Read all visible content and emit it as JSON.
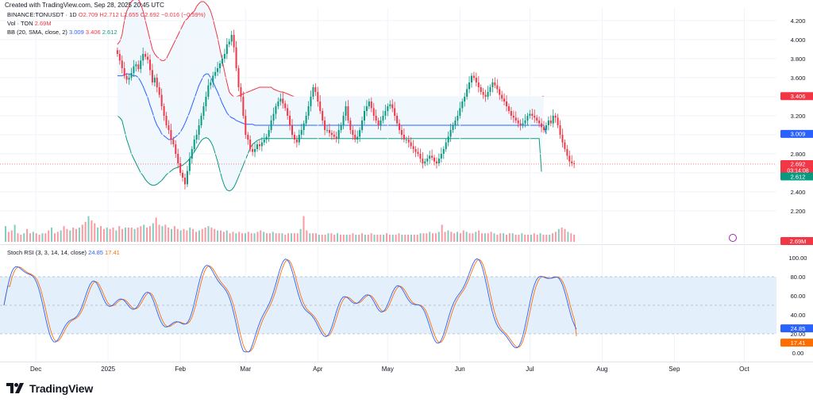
{
  "header": {
    "created": "Created with TradingView.com, Sep 28, 2025 20:45 UTC"
  },
  "legend": {
    "symbol": "BINANCE:TONUSDT · 1D",
    "ohlc": "O2.709 H2.712 L2.655 C2.692 −0.016 (−0.59%)",
    "vol_label": "Vol · TON",
    "vol_value": "2.69M",
    "bb_label": "BB (20, SMA, close, 2)",
    "bb_basis": "3.009",
    "bb_upper": "3.406",
    "bb_lower": "2.612",
    "stoch_label": "Stoch RSI (3, 3, 14, 14, close)",
    "stoch_k": "24.85",
    "stoch_d": "17.41"
  },
  "badges": {
    "upper": "3.406",
    "price": "2.692",
    "countdown": "03:14:08",
    "basis": "3.009",
    "lower": "2.612",
    "volume": "2.69M",
    "stoch_k": "24.85",
    "stoch_d": "17.41"
  },
  "brand": {
    "name": "TradingView"
  },
  "colors": {
    "up": "#089981",
    "down": "#f23645",
    "bb_upper": "#f23645",
    "bb_basis": "#2962ff",
    "bb_lower": "#089981",
    "bb_fill": "#e3f2fd",
    "stoch_k": "#2962ff",
    "stoch_d": "#ff6d00",
    "stoch_band": "#e3f0fc"
  },
  "chart_data": [
    {
      "type": "candlestick",
      "title": "BINANCE:TONUSDT · 1D",
      "y_ticks": [
        2.2,
        2.4,
        2.6,
        2.8,
        3.0,
        3.2,
        3.4,
        3.6,
        3.8,
        4.0,
        4.2
      ],
      "y_tick_labels": [
        "2.200",
        "2.400",
        "2.600",
        "2.800",
        "3.000",
        "3.200",
        "3.400",
        "3.600",
        "3.800",
        "4.000",
        "4.200"
      ],
      "ylim": [
        2.1,
        4.28
      ],
      "x_tick_labels": [
        "Dec",
        "2025",
        "Feb",
        "Mar",
        "Apr",
        "May",
        "Jun",
        "Jul",
        "Aug",
        "Sep",
        "Oct"
      ],
      "x_tick_days": [
        13,
        44,
        75,
        103,
        134,
        164,
        195,
        225,
        256,
        287,
        317
      ],
      "last_close": 2.692,
      "close": [
        3.85,
        3.78,
        3.7,
        3.62,
        3.58,
        3.6,
        3.65,
        3.72,
        3.74,
        3.69,
        3.78,
        3.85,
        3.82,
        3.79,
        3.68,
        3.55,
        3.6,
        3.5,
        3.42,
        3.3,
        3.2,
        3.1,
        3.05,
        2.95,
        2.9,
        2.8,
        2.7,
        2.6,
        2.55,
        2.48,
        2.62,
        2.75,
        2.85,
        2.95,
        3.0,
        3.1,
        3.2,
        3.3,
        3.4,
        3.52,
        3.55,
        3.62,
        3.66,
        3.7,
        3.75,
        3.8,
        3.85,
        3.95,
        3.98,
        4.05,
        3.92,
        3.7,
        3.5,
        3.4,
        3.2,
        3.0,
        2.95,
        2.85,
        2.82,
        2.85,
        2.9,
        2.88,
        2.92,
        2.95,
        2.98,
        3.05,
        3.15,
        3.22,
        3.3,
        3.35,
        3.38,
        3.33,
        3.28,
        3.2,
        3.1,
        3.0,
        2.95,
        2.92,
        3.0,
        3.05,
        3.12,
        3.2,
        3.3,
        3.4,
        3.5,
        3.45,
        3.35,
        3.25,
        3.15,
        3.05,
        3.05,
        3.02,
        3.0,
        2.98,
        2.96,
        3.05,
        3.1,
        3.2,
        3.3,
        3.15,
        3.05,
        3.0,
        2.95,
        2.98,
        3.05,
        3.15,
        3.25,
        3.3,
        3.35,
        3.28,
        3.2,
        3.15,
        3.1,
        3.15,
        3.2,
        3.25,
        3.3,
        3.32,
        3.28,
        3.2,
        3.12,
        3.05,
        3.0,
        2.95,
        2.95,
        2.92,
        2.88,
        2.85,
        2.82,
        2.8,
        2.75,
        2.7,
        2.72,
        2.75,
        2.78,
        2.76,
        2.72,
        2.7,
        2.75,
        2.8,
        2.85,
        2.92,
        2.98,
        3.05,
        3.1,
        3.15,
        3.2,
        3.28,
        3.35,
        3.4,
        3.48,
        3.55,
        3.62,
        3.6,
        3.55,
        3.5,
        3.45,
        3.42,
        3.4,
        3.45,
        3.5,
        3.55,
        3.52,
        3.48,
        3.42,
        3.38,
        3.35,
        3.3,
        3.25,
        3.2,
        3.18,
        3.15,
        3.12,
        3.1,
        3.12,
        3.15,
        3.2,
        3.22,
        3.2,
        3.18,
        3.15,
        3.12,
        3.08,
        3.05,
        3.1,
        3.15,
        3.12,
        3.2,
        3.18,
        3.1,
        3.0,
        2.92,
        2.85,
        2.78,
        2.72,
        2.7,
        2.692
      ],
      "bb_upper": [
        3.95,
        3.98,
        4.05,
        4.2,
        4.3,
        4.35,
        4.4,
        4.42,
        4.45,
        4.42,
        4.38,
        4.3,
        4.2,
        4.1,
        4.0,
        3.9,
        3.85,
        3.82,
        3.8,
        3.78,
        3.78,
        3.8,
        3.85,
        3.9,
        3.95,
        4.0,
        4.05,
        4.1,
        4.15,
        4.2,
        4.22,
        4.25,
        4.28,
        4.3,
        4.35,
        4.38,
        4.4,
        4.4,
        4.38,
        4.35,
        4.3,
        4.22,
        4.12,
        4.02,
        3.9,
        3.78,
        3.66,
        3.55,
        3.45,
        3.42,
        3.4,
        3.4,
        3.41,
        3.42,
        3.43,
        3.44,
        3.45,
        3.46,
        3.47,
        3.48,
        3.49,
        3.5,
        3.5,
        3.5,
        3.5,
        3.5,
        3.5,
        3.48,
        3.47,
        3.46,
        3.45,
        3.45,
        3.44,
        3.43,
        3.42,
        3.41,
        3.4,
        3.4,
        3.4,
        3.4,
        3.4,
        3.4,
        3.4,
        3.4,
        3.4,
        3.4,
        3.4,
        3.4,
        3.4,
        3.4,
        3.4,
        3.4,
        3.4,
        3.4,
        3.4,
        3.4,
        3.4,
        3.4,
        3.4,
        3.4,
        3.4,
        3.4,
        3.4,
        3.4,
        3.4,
        3.4,
        3.4,
        3.4,
        3.4,
        3.4,
        3.4,
        3.4,
        3.4,
        3.4,
        3.4,
        3.4,
        3.4,
        3.4,
        3.4,
        3.4,
        3.4,
        3.4,
        3.4,
        3.4,
        3.4,
        3.4,
        3.4,
        3.4,
        3.4,
        3.4,
        3.4,
        3.4,
        3.4,
        3.4,
        3.4,
        3.4,
        3.4,
        3.4,
        3.4,
        3.4,
        3.4,
        3.4,
        3.4,
        3.4,
        3.4,
        3.4,
        3.4,
        3.4,
        3.4,
        3.4,
        3.4,
        3.4,
        3.4,
        3.4,
        3.4,
        3.4,
        3.4,
        3.4,
        3.4,
        3.4,
        3.4,
        3.4,
        3.4,
        3.4,
        3.4,
        3.4,
        3.4,
        3.4,
        3.4,
        3.4,
        3.4,
        3.4,
        3.4,
        3.4,
        3.4,
        3.4,
        3.4,
        3.4,
        3.4,
        3.4,
        3.4,
        3.4,
        3.4,
        3.406
      ],
      "bb_basis": [
        3.62,
        3.62,
        3.62,
        3.63,
        3.64,
        3.64,
        3.63,
        3.62,
        3.62,
        3.6,
        3.56,
        3.51,
        3.45,
        3.39,
        3.31,
        3.24,
        3.16,
        3.1,
        3.06,
        3.01,
        2.99,
        2.97,
        2.95,
        2.95,
        2.96,
        2.98,
        3.0,
        3.03,
        3.07,
        3.12,
        3.18,
        3.24,
        3.31,
        3.38,
        3.45,
        3.52,
        3.57,
        3.62,
        3.64,
        3.64,
        3.6,
        3.56,
        3.5,
        3.45,
        3.39,
        3.33,
        3.28,
        3.23,
        3.2,
        3.18,
        3.17,
        3.15,
        3.14,
        3.13,
        3.12,
        3.11,
        3.11,
        3.11,
        3.11,
        3.1,
        3.1,
        3.1,
        3.1,
        3.1,
        3.1,
        3.1,
        3.1,
        3.1,
        3.1,
        3.1,
        3.1,
        3.1,
        3.1,
        3.1,
        3.1,
        3.1,
        3.1,
        3.1,
        3.1,
        3.1,
        3.1,
        3.1,
        3.1,
        3.1,
        3.1,
        3.1,
        3.1,
        3.1,
        3.1,
        3.1,
        3.1,
        3.1,
        3.1,
        3.1,
        3.1,
        3.1,
        3.1,
        3.1,
        3.1,
        3.1,
        3.1,
        3.1,
        3.1,
        3.1,
        3.1,
        3.1,
        3.1,
        3.1,
        3.1,
        3.1,
        3.1,
        3.1,
        3.1,
        3.1,
        3.1,
        3.1,
        3.1,
        3.1,
        3.1,
        3.1,
        3.1,
        3.1,
        3.1,
        3.1,
        3.1,
        3.1,
        3.1,
        3.1,
        3.1,
        3.1,
        3.1,
        3.1,
        3.1,
        3.1,
        3.1,
        3.1,
        3.1,
        3.1,
        3.1,
        3.1,
        3.1,
        3.1,
        3.1,
        3.1,
        3.1,
        3.1,
        3.1,
        3.1,
        3.1,
        3.1,
        3.1,
        3.1,
        3.1,
        3.1,
        3.1,
        3.1,
        3.1,
        3.1,
        3.1,
        3.1,
        3.1,
        3.1,
        3.1,
        3.1,
        3.1,
        3.1,
        3.1,
        3.1,
        3.1,
        3.1,
        3.1,
        3.1,
        3.1,
        3.1,
        3.1,
        3.1,
        3.1,
        3.1,
        3.1,
        3.1,
        3.1,
        3.1,
        3.1,
        3.1,
        3.009
      ],
      "bb_lower": [
        3.2,
        3.18,
        3.15,
        3.05,
        2.95,
        2.88,
        2.8,
        2.75,
        2.7,
        2.65,
        2.6,
        2.57,
        2.53,
        2.5,
        2.48,
        2.47,
        2.47,
        2.48,
        2.5,
        2.52,
        2.55,
        2.58,
        2.6,
        2.62,
        2.64,
        2.65,
        2.66,
        2.67,
        2.68,
        2.7,
        2.72,
        2.75,
        2.78,
        2.82,
        2.86,
        2.9,
        2.94,
        2.96,
        2.97,
        2.96,
        2.93,
        2.88,
        2.8,
        2.72,
        2.62,
        2.53,
        2.46,
        2.42,
        2.41,
        2.42,
        2.45,
        2.5,
        2.56,
        2.62,
        2.68,
        2.74,
        2.8,
        2.86,
        2.9,
        2.92,
        2.94,
        2.95,
        2.96,
        2.96,
        2.96,
        2.96,
        2.96,
        2.96,
        2.96,
        2.96,
        2.96,
        2.96,
        2.96,
        2.96,
        2.96,
        2.96,
        2.96,
        2.96,
        2.96,
        2.96,
        2.96,
        2.96,
        2.96,
        2.96,
        2.96,
        2.96,
        2.96,
        2.96,
        2.96,
        2.96,
        2.96,
        2.96,
        2.96,
        2.96,
        2.96,
        2.96,
        2.96,
        2.96,
        2.96,
        2.96,
        2.96,
        2.96,
        2.96,
        2.96,
        2.96,
        2.96,
        2.96,
        2.96,
        2.96,
        2.96,
        2.96,
        2.96,
        2.96,
        2.96,
        2.96,
        2.96,
        2.96,
        2.96,
        2.96,
        2.96,
        2.96,
        2.96,
        2.96,
        2.96,
        2.96,
        2.96,
        2.96,
        2.96,
        2.96,
        2.96,
        2.96,
        2.96,
        2.96,
        2.96,
        2.96,
        2.96,
        2.96,
        2.96,
        2.96,
        2.96,
        2.96,
        2.96,
        2.96,
        2.96,
        2.96,
        2.96,
        2.96,
        2.96,
        2.96,
        2.96,
        2.96,
        2.96,
        2.96,
        2.96,
        2.96,
        2.96,
        2.96,
        2.96,
        2.96,
        2.96,
        2.96,
        2.96,
        2.96,
        2.96,
        2.96,
        2.96,
        2.96,
        2.96,
        2.96,
        2.96,
        2.96,
        2.96,
        2.96,
        2.96,
        2.96,
        2.96,
        2.96,
        2.96,
        2.96,
        2.96,
        2.96,
        2.96,
        2.612
      ]
    },
    {
      "type": "bar",
      "title": "Vol · TON",
      "last_value": "2.69M",
      "values": [
        0.55,
        0.35,
        0.4,
        0.6,
        0.3,
        0.25,
        0.3,
        0.45,
        0.3,
        0.35,
        0.3,
        0.25,
        0.3,
        0.3,
        0.4,
        0.5,
        0.3,
        0.35,
        0.4,
        0.55,
        0.45,
        0.4,
        0.5,
        0.45,
        0.5,
        0.6,
        0.7,
        0.9,
        0.75,
        0.65,
        0.5,
        0.55,
        0.45,
        0.5,
        0.45,
        0.5,
        0.4,
        0.55,
        0.45,
        0.5,
        0.5,
        0.5,
        0.45,
        0.5,
        0.55,
        0.6,
        0.5,
        0.55,
        0.65,
        0.85,
        0.6,
        0.55,
        0.6,
        0.5,
        0.45,
        0.55,
        0.45,
        0.4,
        0.45,
        0.4,
        0.5,
        0.45,
        0.35,
        0.4,
        0.45,
        0.5,
        0.55,
        0.5,
        0.45,
        0.4,
        0.4,
        0.35,
        0.4,
        0.3,
        0.35,
        0.3,
        0.35,
        0.3,
        0.3,
        0.35,
        0.3,
        0.3,
        0.35,
        0.4,
        0.35,
        0.3,
        0.3,
        0.35,
        0.3,
        0.3,
        0.3,
        0.25,
        0.3,
        0.3,
        0.3,
        0.3,
        0.45,
        0.9,
        0.4,
        0.3,
        0.3,
        0.3,
        0.25,
        0.25,
        0.25,
        0.3,
        0.3,
        0.25,
        0.3,
        0.25,
        0.25,
        0.25,
        0.25,
        0.3,
        0.25,
        0.25,
        0.3,
        0.25,
        0.25,
        0.3,
        0.25,
        0.25,
        0.25,
        0.25,
        0.3,
        0.25,
        0.25,
        0.25,
        0.3,
        0.25,
        0.25,
        0.25,
        0.25,
        0.25,
        0.25,
        0.3,
        0.3,
        0.3,
        0.35,
        0.3,
        0.3,
        0.35,
        0.6,
        0.35,
        0.4,
        0.35,
        0.3,
        0.35,
        0.3,
        0.4,
        0.35,
        0.3,
        0.3,
        0.35,
        0.4,
        0.3,
        0.3,
        0.3,
        0.35,
        0.3,
        0.25,
        0.3,
        0.3,
        0.25,
        0.3,
        0.3,
        0.25,
        0.25,
        0.3,
        0.25,
        0.25,
        0.25,
        0.3,
        0.25,
        0.3,
        0.25,
        0.25,
        0.25,
        0.3,
        0.35,
        0.45,
        0.5,
        0.45,
        0.35,
        0.3,
        0.25
      ]
    },
    {
      "type": "line",
      "title": "Stoch RSI (3, 3, 14, 14, close)",
      "y_ticks": [
        0,
        20,
        40,
        60,
        80,
        100
      ],
      "y_tick_labels": [
        "0.00",
        "20.00",
        "40.00",
        "60.00",
        "80.00",
        "100.00"
      ],
      "ylim": [
        -4,
        104
      ],
      "band": [
        20,
        80
      ],
      "series": [
        {
          "name": "K",
          "last": 24.85
        },
        {
          "name": "D",
          "last": 17.41
        }
      ]
    }
  ]
}
